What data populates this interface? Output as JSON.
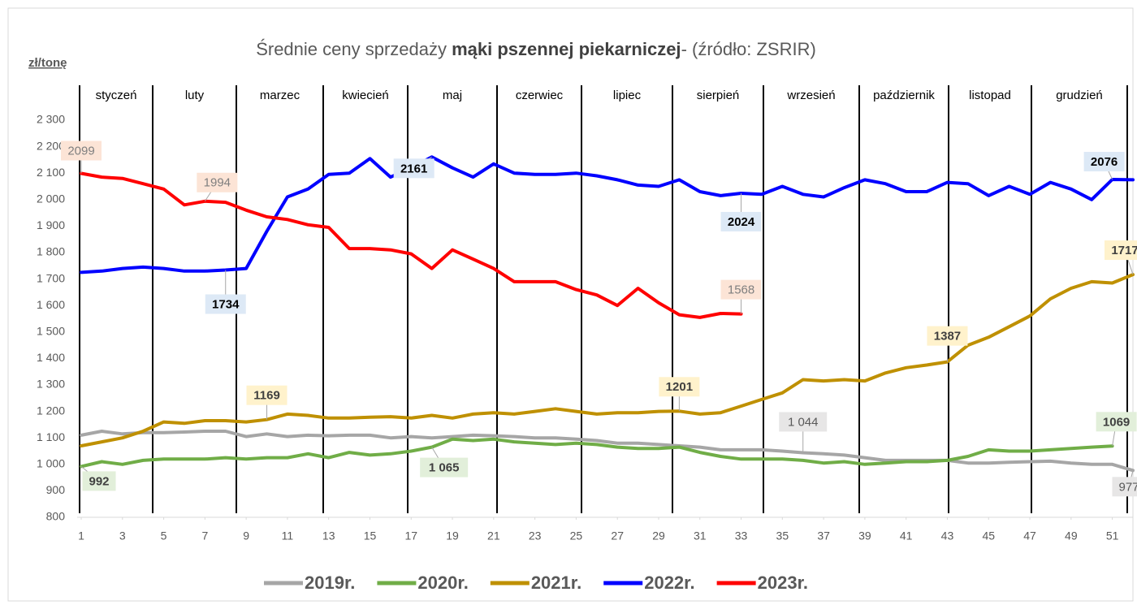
{
  "chart_data": {
    "type": "line",
    "title_start": "Średnie ceny sprzedaży ",
    "title_bold": "mąki pszennej piekarniczej",
    "title_end": "- (źródło: ZSRIR)",
    "y_label": "zł/tonę",
    "months": [
      "styczeń",
      "luty",
      "marzec",
      "kwiecień",
      "maj",
      "czerwiec",
      "lipiec",
      "sierpień",
      "wrzesień",
      "październik",
      "listopad",
      "grudzień"
    ],
    "x": [
      1,
      2,
      3,
      4,
      5,
      6,
      7,
      8,
      9,
      10,
      11,
      12,
      13,
      14,
      15,
      16,
      17,
      18,
      19,
      20,
      21,
      22,
      23,
      24,
      25,
      26,
      27,
      28,
      29,
      30,
      31,
      32,
      33,
      34,
      35,
      36,
      37,
      38,
      39,
      40,
      41,
      42,
      43,
      44,
      45,
      46,
      47,
      48,
      49,
      50,
      51,
      52
    ],
    "xlim": [
      1,
      52
    ],
    "xticks": [
      1,
      3,
      5,
      7,
      9,
      11,
      13,
      15,
      17,
      19,
      21,
      23,
      25,
      27,
      29,
      31,
      33,
      35,
      37,
      39,
      41,
      43,
      45,
      47,
      49,
      51
    ],
    "ylim": [
      800,
      2300
    ],
    "yticks": [
      {
        "value": 800,
        "label": "800"
      },
      {
        "value": 900,
        "label": "900"
      },
      {
        "value": 1000,
        "label": "1 000"
      },
      {
        "value": 1100,
        "label": "1 100"
      },
      {
        "value": 1200,
        "label": "1 200"
      },
      {
        "value": 1300,
        "label": "1 300"
      },
      {
        "value": 1400,
        "label": "1 400"
      },
      {
        "value": 1500,
        "label": "1 500"
      },
      {
        "value": 1600,
        "label": "1 600"
      },
      {
        "value": 1700,
        "label": "1 700"
      },
      {
        "value": 1800,
        "label": "1 800"
      },
      {
        "value": 1900,
        "label": "1 900"
      },
      {
        "value": 2000,
        "label": "2 000"
      },
      {
        "value": 2100,
        "label": "2 100"
      },
      {
        "value": 2200,
        "label": "2 200"
      },
      {
        "value": 2300,
        "label": "2 300"
      }
    ],
    "series": [
      {
        "name": "2019r.",
        "color": "#a6a6a6",
        "values": [
          1110,
          1125,
          1115,
          1120,
          1120,
          1122,
          1125,
          1125,
          1105,
          1115,
          1105,
          1110,
          1108,
          1110,
          1110,
          1100,
          1105,
          1100,
          1105,
          1110,
          1108,
          1105,
          1100,
          1100,
          1095,
          1090,
          1080,
          1080,
          1075,
          1070,
          1065,
          1055,
          1055,
          1055,
          1050,
          1044,
          1040,
          1035,
          1025,
          1015,
          1015,
          1015,
          1015,
          1005,
          1005,
          1008,
          1010,
          1012,
          1005,
          1000,
          1000,
          977
        ],
        "value_labels": [
          null,
          null,
          null,
          null,
          null,
          null,
          null,
          null,
          null,
          null,
          null,
          null,
          null,
          null,
          null,
          null,
          null,
          null,
          null,
          null,
          null,
          null,
          null,
          null,
          null,
          null,
          null,
          null,
          null,
          null,
          null,
          null,
          null,
          null,
          null,
          "1 044",
          null,
          null,
          null,
          null,
          null,
          null,
          null,
          null,
          null,
          null,
          null,
          null,
          null,
          null,
          null,
          "977"
        ]
      },
      {
        "name": "2020r.",
        "color": "#70ad47",
        "values": [
          992,
          1010,
          1000,
          1015,
          1020,
          1020,
          1020,
          1025,
          1020,
          1025,
          1025,
          1040,
          1025,
          1045,
          1035,
          1040,
          1050,
          1065,
          1095,
          1090,
          1095,
          1085,
          1080,
          1075,
          1080,
          1075,
          1065,
          1060,
          1060,
          1065,
          1045,
          1030,
          1020,
          1020,
          1020,
          1015,
          1005,
          1010,
          1000,
          1005,
          1010,
          1010,
          1015,
          1030,
          1055,
          1050,
          1050,
          1055,
          1060,
          1065,
          1069,
          null
        ],
        "value_labels": [
          "992",
          null,
          null,
          null,
          null,
          null,
          null,
          null,
          null,
          null,
          null,
          null,
          null,
          null,
          null,
          null,
          null,
          "1 065",
          null,
          null,
          null,
          null,
          null,
          null,
          null,
          null,
          null,
          null,
          null,
          null,
          null,
          null,
          null,
          null,
          null,
          null,
          null,
          null,
          null,
          null,
          null,
          null,
          null,
          null,
          null,
          null,
          null,
          null,
          null,
          null,
          "1069",
          null
        ]
      },
      {
        "name": "2021r.",
        "color": "#bf9000",
        "values": [
          1070,
          1085,
          1100,
          1125,
          1160,
          1155,
          1165,
          1165,
          1160,
          1169,
          1190,
          1185,
          1175,
          1175,
          1178,
          1180,
          1175,
          1185,
          1175,
          1190,
          1195,
          1190,
          1200,
          1210,
          1200,
          1190,
          1195,
          1195,
          1200,
          1201,
          1190,
          1195,
          1220,
          1245,
          1270,
          1320,
          1315,
          1320,
          1315,
          1345,
          1365,
          1375,
          1387,
          1450,
          1480,
          1520,
          1560,
          1625,
          1665,
          1690,
          1685,
          1717
        ],
        "value_labels": [
          null,
          null,
          null,
          null,
          null,
          null,
          null,
          null,
          null,
          "1169",
          null,
          null,
          null,
          null,
          null,
          null,
          null,
          null,
          null,
          null,
          null,
          null,
          null,
          null,
          null,
          null,
          null,
          null,
          null,
          "1201",
          null,
          null,
          null,
          null,
          null,
          null,
          null,
          null,
          null,
          null,
          null,
          null,
          "1387",
          null,
          null,
          null,
          null,
          null,
          null,
          null,
          null,
          "1717"
        ]
      },
      {
        "name": "2022r.",
        "color": "#0000ff",
        "values": [
          1725,
          1730,
          1740,
          1745,
          1740,
          1730,
          1730,
          1734,
          1740,
          1880,
          2010,
          2040,
          2095,
          2100,
          2155,
          2085,
          2120,
          2161,
          2120,
          2085,
          2135,
          2100,
          2095,
          2095,
          2100,
          2090,
          2075,
          2055,
          2050,
          2075,
          2030,
          2015,
          2024,
          2020,
          2050,
          2020,
          2010,
          2045,
          2075,
          2060,
          2030,
          2030,
          2065,
          2060,
          2015,
          2050,
          2020,
          2065,
          2040,
          2000,
          2076,
          2075
        ],
        "value_labels": [
          null,
          null,
          null,
          null,
          null,
          null,
          null,
          "1734",
          null,
          null,
          null,
          null,
          null,
          null,
          null,
          null,
          null,
          "2161",
          null,
          null,
          null,
          null,
          null,
          null,
          null,
          null,
          null,
          null,
          null,
          null,
          null,
          null,
          "2024",
          null,
          null,
          null,
          null,
          null,
          null,
          null,
          null,
          null,
          null,
          null,
          null,
          null,
          null,
          null,
          null,
          null,
          "2076",
          null
        ]
      },
      {
        "name": "2023r.",
        "color": "#ff0000",
        "values": [
          2099,
          2085,
          2080,
          2060,
          2040,
          1980,
          1994,
          1990,
          1960,
          1935,
          1925,
          1905,
          1895,
          1815,
          1815,
          1810,
          1795,
          1740,
          1810,
          1775,
          1740,
          1690,
          1690,
          1690,
          1660,
          1640,
          1600,
          1665,
          1610,
          1565,
          1555,
          1570,
          1568,
          null,
          null,
          null,
          null,
          null,
          null,
          null,
          null,
          null,
          null,
          null,
          null,
          null,
          null,
          null,
          null,
          null,
          null,
          null
        ],
        "value_labels": [
          "2099",
          null,
          null,
          null,
          null,
          null,
          "1994",
          null,
          null,
          null,
          null,
          null,
          null,
          null,
          null,
          null,
          null,
          null,
          null,
          null,
          null,
          null,
          null,
          null,
          null,
          null,
          null,
          null,
          null,
          null,
          null,
          null,
          "1568",
          null,
          null,
          null,
          null,
          null,
          null,
          null,
          null,
          null,
          null,
          null,
          null,
          null,
          null,
          null,
          null,
          null,
          null,
          null
        ]
      }
    ]
  }
}
